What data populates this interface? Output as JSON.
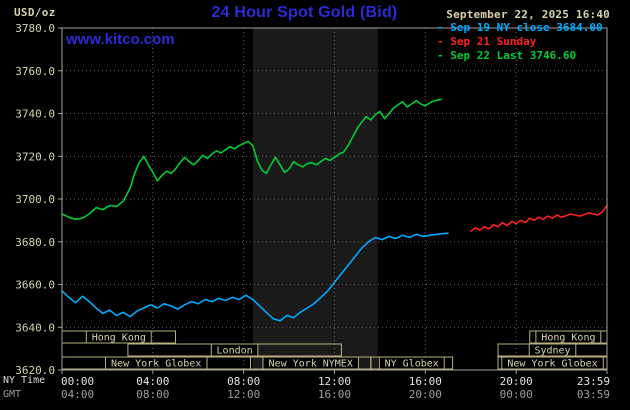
{
  "header": {
    "units": "USD/oz",
    "title": "24 Hour Spot Gold (Bid)",
    "datetime": "September 22, 2025 16:40",
    "site": "www.kitco.com"
  },
  "legend_bullet": "-",
  "legend": [
    {
      "id": "sep19",
      "label": "Sep 19 NY close 3684.00",
      "color": "#00aaff"
    },
    {
      "id": "sep21",
      "label": "Sep 21 Sunday",
      "color": "#ff2020"
    },
    {
      "id": "sep22",
      "label": "Sep 22 Last 3746.60",
      "color": "#00cc33"
    }
  ],
  "axes": {
    "ny_time_caption": "NY Time",
    "gmt_caption": "GMT",
    "tick_hours": [
      0,
      4,
      8,
      12,
      16,
      20,
      24
    ],
    "ny_labels": [
      "00:00",
      "04:00",
      "08:00",
      "12:00",
      "16:00",
      "20:00",
      "23:59"
    ],
    "gmt_labels": [
      "04:00",
      "08:00",
      "12:00",
      "16:00",
      "20:00",
      "00:00",
      "03:59"
    ]
  },
  "colors": {
    "background": "#000000",
    "title_blue": "#2b2bd9",
    "axis_text": "#d8d2ae",
    "grid": "#646464",
    "border": "#a0a0a0",
    "band": "#1a1a1a",
    "session_border": "#b8af7e",
    "session_text": "#d8d2ae"
  },
  "chart_data": {
    "type": "line",
    "title": "24 Hour Spot Gold (Bid)",
    "ylabel": "USD/oz",
    "xlabel": "NY Time (hours 00:00-23:59)",
    "ylim": [
      3620,
      3780
    ],
    "y_ticks": [
      3620,
      3640,
      3660,
      3680,
      3700,
      3720,
      3740,
      3760,
      3780
    ],
    "x_range_hours": [
      0,
      24
    ],
    "grid": "dotted",
    "legend_position": "top-right",
    "session_band": {
      "start_hour": 8.4,
      "end_hour": 13.9
    },
    "series": [
      {
        "id": "sep19",
        "name": "Sep 19 NY close 3684.00",
        "color": "#00aaff",
        "points": [
          [
            0,
            3657
          ],
          [
            0.3,
            3654
          ],
          [
            0.6,
            3651.5
          ],
          [
            0.9,
            3654.5
          ],
          [
            1.2,
            3652
          ],
          [
            1.5,
            3649
          ],
          [
            1.8,
            3646.5
          ],
          [
            2.1,
            3648
          ],
          [
            2.4,
            3645.5
          ],
          [
            2.7,
            3647
          ],
          [
            3,
            3645
          ],
          [
            3.3,
            3647.5
          ],
          [
            3.6,
            3649
          ],
          [
            3.9,
            3650.5
          ],
          [
            4.2,
            3649
          ],
          [
            4.5,
            3651
          ],
          [
            4.8,
            3650
          ],
          [
            5.1,
            3648.5
          ],
          [
            5.4,
            3650.5
          ],
          [
            5.7,
            3652
          ],
          [
            6,
            3651
          ],
          [
            6.3,
            3653
          ],
          [
            6.6,
            3652
          ],
          [
            6.9,
            3653.5
          ],
          [
            7.2,
            3652.5
          ],
          [
            7.5,
            3654
          ],
          [
            7.8,
            3653
          ],
          [
            8.1,
            3655
          ],
          [
            8.4,
            3653
          ],
          [
            8.7,
            3650
          ],
          [
            9,
            3647
          ],
          [
            9.3,
            3644
          ],
          [
            9.6,
            3643
          ],
          [
            9.9,
            3645.5
          ],
          [
            10.2,
            3644.5
          ],
          [
            10.5,
            3647
          ],
          [
            10.8,
            3649
          ],
          [
            11.1,
            3651
          ],
          [
            11.4,
            3654
          ],
          [
            11.7,
            3657
          ],
          [
            12,
            3661
          ],
          [
            12.3,
            3665
          ],
          [
            12.6,
            3669
          ],
          [
            12.9,
            3673
          ],
          [
            13.2,
            3677
          ],
          [
            13.5,
            3680
          ],
          [
            13.8,
            3682
          ],
          [
            14.1,
            3681
          ],
          [
            14.4,
            3682.5
          ],
          [
            14.7,
            3681.5
          ],
          [
            15,
            3683
          ],
          [
            15.3,
            3682
          ],
          [
            15.6,
            3683.5
          ],
          [
            15.9,
            3682.5
          ],
          [
            16.2,
            3683
          ],
          [
            16.5,
            3683.5
          ],
          [
            17,
            3684
          ]
        ]
      },
      {
        "id": "sep21",
        "name": "Sep 21 Sunday",
        "color": "#ff2020",
        "points": [
          [
            18,
            3685
          ],
          [
            18.2,
            3686.5
          ],
          [
            18.4,
            3685.5
          ],
          [
            18.6,
            3687
          ],
          [
            18.8,
            3686
          ],
          [
            19,
            3688
          ],
          [
            19.2,
            3687
          ],
          [
            19.4,
            3689
          ],
          [
            19.6,
            3687.5
          ],
          [
            19.8,
            3689.5
          ],
          [
            20,
            3688.5
          ],
          [
            20.2,
            3690
          ],
          [
            20.4,
            3689
          ],
          [
            20.6,
            3691
          ],
          [
            20.8,
            3690
          ],
          [
            21,
            3691.5
          ],
          [
            21.2,
            3690.5
          ],
          [
            21.4,
            3692
          ],
          [
            21.6,
            3691
          ],
          [
            21.8,
            3692.5
          ],
          [
            22,
            3691.5
          ],
          [
            22.4,
            3693
          ],
          [
            22.8,
            3692
          ],
          [
            23.2,
            3693.5
          ],
          [
            23.6,
            3692.5
          ],
          [
            23.8,
            3694
          ],
          [
            24,
            3697
          ]
        ]
      },
      {
        "id": "sep22",
        "name": "Sep 22 Last 3746.60",
        "color": "#00cc33",
        "points": [
          [
            0,
            3693
          ],
          [
            0.3,
            3691.5
          ],
          [
            0.6,
            3690.5
          ],
          [
            0.9,
            3691
          ],
          [
            1.2,
            3693
          ],
          [
            1.5,
            3696
          ],
          [
            1.8,
            3695
          ],
          [
            2.1,
            3697
          ],
          [
            2.4,
            3696.5
          ],
          [
            2.7,
            3699
          ],
          [
            3,
            3705
          ],
          [
            3.2,
            3712
          ],
          [
            3.4,
            3717
          ],
          [
            3.6,
            3720
          ],
          [
            3.8,
            3716
          ],
          [
            4,
            3712.5
          ],
          [
            4.2,
            3708.5
          ],
          [
            4.4,
            3711
          ],
          [
            4.6,
            3713
          ],
          [
            4.8,
            3712
          ],
          [
            5,
            3714
          ],
          [
            5.2,
            3717
          ],
          [
            5.4,
            3719.5
          ],
          [
            5.6,
            3717.5
          ],
          [
            5.8,
            3716
          ],
          [
            6,
            3718
          ],
          [
            6.2,
            3720.5
          ],
          [
            6.4,
            3719
          ],
          [
            6.6,
            3721
          ],
          [
            6.8,
            3722.5
          ],
          [
            7,
            3721.5
          ],
          [
            7.2,
            3723
          ],
          [
            7.4,
            3724.5
          ],
          [
            7.6,
            3723.5
          ],
          [
            7.8,
            3725
          ],
          [
            8,
            3726
          ],
          [
            8.2,
            3727
          ],
          [
            8.4,
            3725
          ],
          [
            8.6,
            3718
          ],
          [
            8.8,
            3713.5
          ],
          [
            9,
            3712
          ],
          [
            9.2,
            3716
          ],
          [
            9.4,
            3719.5
          ],
          [
            9.6,
            3716
          ],
          [
            9.8,
            3712.5
          ],
          [
            10,
            3714
          ],
          [
            10.2,
            3717.5
          ],
          [
            10.4,
            3716
          ],
          [
            10.6,
            3715
          ],
          [
            10.8,
            3716.5
          ],
          [
            11,
            3717
          ],
          [
            11.2,
            3716
          ],
          [
            11.4,
            3717.5
          ],
          [
            11.6,
            3719
          ],
          [
            11.8,
            3718
          ],
          [
            12,
            3719.5
          ],
          [
            12.2,
            3721
          ],
          [
            12.4,
            3722
          ],
          [
            12.6,
            3725
          ],
          [
            12.8,
            3729
          ],
          [
            13,
            3733
          ],
          [
            13.2,
            3736
          ],
          [
            13.4,
            3738.5
          ],
          [
            13.6,
            3737
          ],
          [
            13.8,
            3739.5
          ],
          [
            14,
            3741
          ],
          [
            14.2,
            3737.5
          ],
          [
            14.4,
            3740
          ],
          [
            14.6,
            3742.5
          ],
          [
            14.8,
            3744
          ],
          [
            15,
            3745.5
          ],
          [
            15.2,
            3743
          ],
          [
            15.4,
            3744.5
          ],
          [
            15.6,
            3746
          ],
          [
            15.8,
            3744.5
          ],
          [
            16,
            3743.5
          ],
          [
            16.2,
            3745
          ],
          [
            16.4,
            3746
          ],
          [
            16.7,
            3746.6
          ]
        ]
      }
    ],
    "sessions": [
      {
        "row": 0,
        "label": "Hong Kong",
        "start": 0,
        "end": 5
      },
      {
        "row": 0,
        "label": "Hong Kong",
        "start": 20.6,
        "end": 24
      },
      {
        "row": 1,
        "label": "London",
        "start": 2.9,
        "end": 12.3
      },
      {
        "row": 1,
        "label": "Sydney",
        "start": 19.2,
        "end": 24
      },
      {
        "row": 2,
        "label": "New York Globex",
        "start": 0,
        "end": 8.3
      },
      {
        "row": 2,
        "label": "New York NYMEX",
        "start": 8.3,
        "end": 13.6
      },
      {
        "row": 2,
        "label": "NY Globex",
        "start": 13.6,
        "end": 17.2
      },
      {
        "row": 2,
        "label": "New York Globex",
        "start": 19.2,
        "end": 24
      }
    ]
  }
}
